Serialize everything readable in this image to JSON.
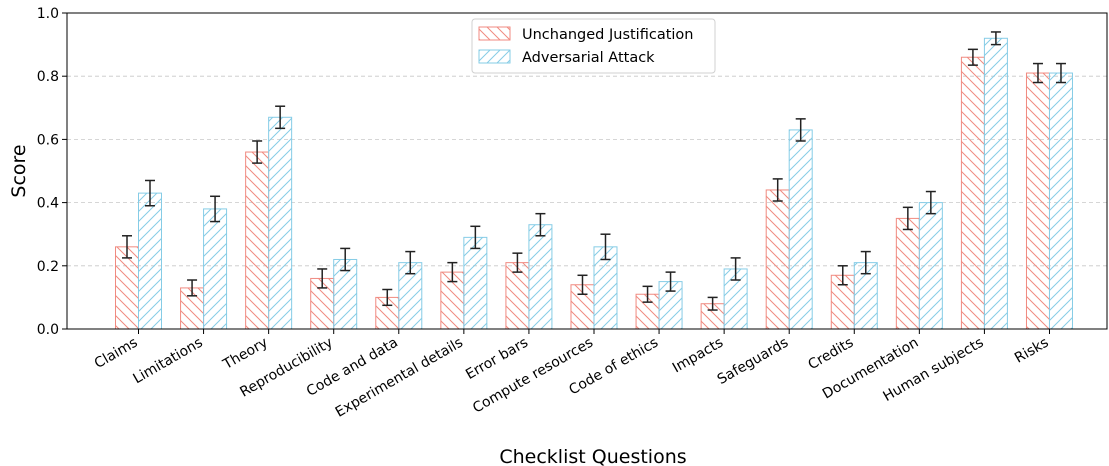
{
  "chart_data": {
    "type": "bar",
    "xlabel": "Checklist Questions",
    "ylabel": "Score",
    "ylim": [
      0,
      1.0
    ],
    "yticks": [
      "0.0",
      "0.2",
      "0.4",
      "0.6",
      "0.8",
      "1.0"
    ],
    "grid": "horizontal dashed",
    "legend_position": "top-center",
    "categories": [
      "Claims",
      "Limitations",
      "Theory",
      "Reproducibility",
      "Code and data",
      "Experimental details",
      "Error bars",
      "Compute resources",
      "Code of ethics",
      "Impacts",
      "Safeguards",
      "Credits",
      "Documentation",
      "Human subjects",
      "Risks"
    ],
    "series": [
      {
        "name": "Unchanged Justification",
        "color": "#f08a80",
        "hatch": "backslash",
        "values": [
          0.26,
          0.13,
          0.56,
          0.16,
          0.1,
          0.18,
          0.21,
          0.14,
          0.11,
          0.08,
          0.44,
          0.17,
          0.35,
          0.86,
          0.81
        ],
        "errors": [
          0.035,
          0.025,
          0.035,
          0.03,
          0.025,
          0.03,
          0.03,
          0.03,
          0.025,
          0.02,
          0.035,
          0.03,
          0.035,
          0.025,
          0.03
        ]
      },
      {
        "name": "Adversarial Attack",
        "color": "#86cce6",
        "hatch": "slash",
        "values": [
          0.43,
          0.38,
          0.67,
          0.22,
          0.21,
          0.29,
          0.33,
          0.26,
          0.15,
          0.19,
          0.63,
          0.21,
          0.4,
          0.92,
          0.81
        ],
        "errors": [
          0.04,
          0.04,
          0.035,
          0.035,
          0.035,
          0.035,
          0.035,
          0.04,
          0.03,
          0.035,
          0.035,
          0.035,
          0.035,
          0.02,
          0.03
        ]
      }
    ]
  }
}
